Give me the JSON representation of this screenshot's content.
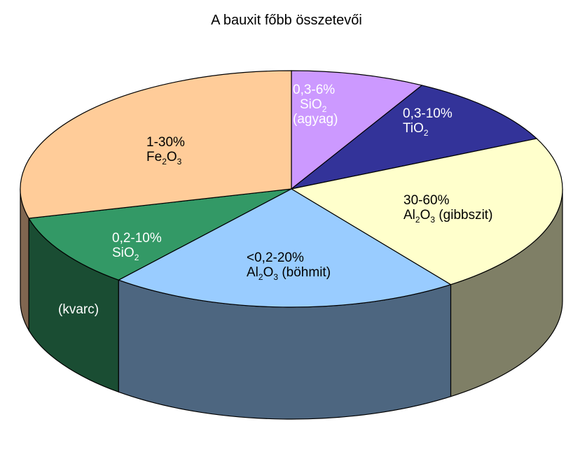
{
  "chart_data": {
    "type": "pie",
    "title": "A bauxit főbb összetevői",
    "slices": [
      {
        "key": "sio2_agyag",
        "value": 8,
        "top_color": "#cc99ff",
        "side_color": "#7a5c99",
        "text_color": "#ffffff",
        "label_line1": "0,3-6%",
        "label_formula_a": "SiO",
        "label_formula_a_sub": "2",
        "label_formula_b": "",
        "label_formula_b_sub": "",
        "label_suffix": "",
        "label_line3": "(agyag)"
      },
      {
        "key": "tio2",
        "value": 10,
        "top_color": "#333399",
        "side_color": "#1f1f5c",
        "text_color": "#ffffff",
        "label_line1": "0,3-10%",
        "label_formula_a": "TiO",
        "label_formula_a_sub": "2",
        "label_formula_b": "",
        "label_formula_b_sub": "",
        "label_suffix": "",
        "label_line3": ""
      },
      {
        "key": "al2o3_gibbszit",
        "value": 22,
        "top_color": "#ffffcc",
        "side_color": "#7f7f66",
        "text_color": "#000000",
        "label_line1": "30-60%",
        "label_formula_a": "Al",
        "label_formula_a_sub": "2",
        "label_formula_b": "O",
        "label_formula_b_sub": "3",
        "label_suffix": " (gibbszit)",
        "label_line3": ""
      },
      {
        "key": "al2o3_bohmit",
        "value": 21,
        "top_color": "#99ccff",
        "side_color": "#4d6680",
        "text_color": "#000000",
        "label_line1": "<0,2-20%",
        "label_formula_a": "Al",
        "label_formula_a_sub": "2",
        "label_formula_b": "O",
        "label_formula_b_sub": "3",
        "label_suffix": " (böhmit)",
        "label_line3": ""
      },
      {
        "key": "sio2_kvarc",
        "value": 10,
        "top_color": "#339966",
        "side_color": "#1a4d33",
        "text_color": "#ffffff",
        "label_line1": "0,2-10%",
        "label_formula_a": "SiO",
        "label_formula_a_sub": "2",
        "label_formula_b": "",
        "label_formula_b_sub": "",
        "label_suffix": "",
        "label_line3": ""
      },
      {
        "key": "fe2o3",
        "value": 29,
        "top_color": "#ffcc99",
        "side_color": "#806650",
        "text_color": "#000000",
        "label_line1": "1-30%",
        "label_formula_a": "Fe",
        "label_formula_a_sub": "2",
        "label_formula_b": "O",
        "label_formula_b_sub": "3",
        "label_suffix": "",
        "label_line3": ""
      }
    ],
    "side_note": "(kvarc)",
    "side_note_color": "#ffffff"
  }
}
